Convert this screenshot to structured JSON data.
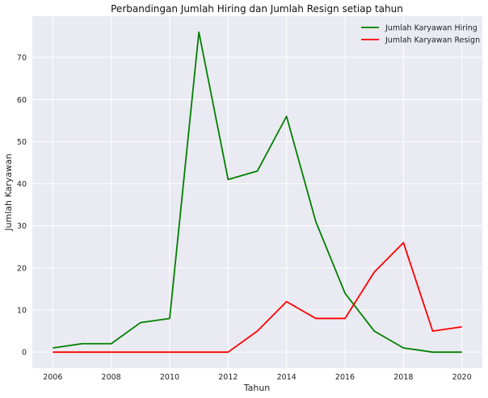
{
  "chart_data": {
    "type": "line",
    "title": "Perbandingan Jumlah Hiring dan Jumlah Resign setiap tahun",
    "xlabel": "Tahun",
    "ylabel": "Jumlah Karyawan",
    "x": [
      2006,
      2007,
      2008,
      2009,
      2010,
      2011,
      2012,
      2013,
      2014,
      2015,
      2016,
      2017,
      2018,
      2019,
      2020
    ],
    "xlim": [
      2005.3,
      2020.7
    ],
    "ylim": [
      -3.8,
      79.8
    ],
    "xticks": [
      "2006",
      "2008",
      "2010",
      "2012",
      "2014",
      "2016",
      "2018",
      "2020"
    ],
    "yticks": [
      "0",
      "10",
      "20",
      "30",
      "40",
      "50",
      "60",
      "70"
    ],
    "grid": true,
    "legend_position": "top-right",
    "background_color": "#eaeaf2",
    "series": [
      {
        "name": "Jumlah Karyawan Hiring",
        "color": "#008000",
        "values": [
          1,
          2,
          2,
          7,
          8,
          76,
          41,
          43,
          56,
          31,
          14,
          5,
          1,
          0,
          0
        ]
      },
      {
        "name": "Jumlah Karyawan Resign",
        "color": "#ff0000",
        "values": [
          0,
          0,
          0,
          0,
          0,
          0,
          0,
          5,
          12,
          8,
          8,
          19,
          26,
          5,
          6
        ]
      }
    ]
  }
}
